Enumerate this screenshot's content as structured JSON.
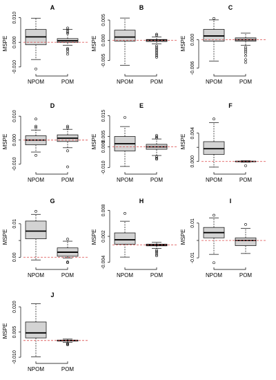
{
  "chart_data": [
    {
      "type": "box",
      "title": "A",
      "ylabel": "MSPE",
      "ylim": [
        -0.012,
        0.011
      ],
      "ticks": [
        -0.01,
        0.0,
        0.01
      ],
      "tick_labels": [
        "-0.010",
        "0.000",
        "0.010"
      ],
      "reference_line": 0,
      "categories": [
        "NPOM",
        "POM"
      ],
      "boxes": [
        {
          "min": -0.007,
          "q1": -0.001,
          "median": 0.0022,
          "q3": 0.0052,
          "max": 0.0098,
          "outliers": [
            -0.0108
          ]
        },
        {
          "min": -0.0012,
          "q1": -0.0001,
          "median": 0.0006,
          "q3": 0.0015,
          "max": 0.0052,
          "outliers": [
            0.0058,
            0.005,
            0.0042,
            0.0036,
            -0.0025,
            -0.003,
            -0.0038,
            -0.0048
          ]
        }
      ]
    },
    {
      "type": "box",
      "title": "B",
      "ylabel": "MSPE",
      "ylim": [
        -0.0078,
        0.0062
      ],
      "ticks": [
        -0.005,
        0.0,
        0.005
      ],
      "tick_labels": [
        "-0.005",
        "0.000",
        "0.005"
      ],
      "reference_line": 0,
      "categories": [
        "NPOM",
        "POM"
      ],
      "boxes": [
        {
          "min": -0.0062,
          "q1": -0.0002,
          "median": 0.0008,
          "q3": 0.0025,
          "max": 0.0055,
          "outliers": []
        },
        {
          "min": -0.0009,
          "q1": -0.0003,
          "median": 0.0,
          "q3": 0.0002,
          "max": 0.0008,
          "outliers": [
            0.0012,
            0.0015,
            -0.0014,
            -0.0018,
            -0.0022,
            -0.0026,
            -0.003,
            -0.0034,
            -0.0038,
            -0.0042
          ]
        }
      ]
    },
    {
      "type": "box",
      "title": "C",
      "ylabel": "MSPE",
      "ylim": [
        -0.0068,
        0.0052
      ],
      "ticks": [
        -0.006,
        0.0
      ],
      "tick_labels": [
        "-0.006",
        "0.000"
      ],
      "reference_line": 0,
      "categories": [
        "NPOM",
        "POM"
      ],
      "boxes": [
        {
          "min": -0.0045,
          "q1": -0.0003,
          "median": 0.0008,
          "q3": 0.0022,
          "max": 0.0042,
          "outliers": [
            0.0045
          ]
        },
        {
          "min": -0.0012,
          "q1": -0.0003,
          "median": 0.0,
          "q3": 0.0004,
          "max": 0.0014,
          "outliers": [
            -0.0016,
            -0.002,
            -0.0024,
            -0.0028,
            -0.0034,
            -0.0042,
            -0.0048
          ]
        }
      ]
    },
    {
      "type": "box",
      "title": "D",
      "ylabel": "MSPE",
      "ylim": [
        -0.0125,
        0.0112
      ],
      "ticks": [
        -0.01,
        0.0,
        0.01
      ],
      "tick_labels": [
        "-0.010",
        "0.000",
        "0.010"
      ],
      "reference_line": 0,
      "categories": [
        "NPOM",
        "POM"
      ],
      "boxes": [
        {
          "min": -0.005,
          "q1": -0.002,
          "median": 0.0,
          "q3": 0.0018,
          "max": 0.0042,
          "outliers": [
            0.0058,
            0.0052,
            -0.0064,
            0.0088
          ]
        },
        {
          "min": -0.0032,
          "q1": -0.0006,
          "median": 0.0008,
          "q3": 0.0022,
          "max": 0.0045,
          "outliers": [
            0.0052,
            0.0058,
            -0.0045,
            -0.0112
          ]
        }
      ]
    },
    {
      "type": "box",
      "title": "E",
      "ylabel": "MSPE",
      "ylim": [
        -0.0112,
        0.0162
      ],
      "ticks": [
        -0.01,
        0.0,
        0.005,
        0.015
      ],
      "tick_labels": [
        "-0.010",
        "0.000",
        "0.005",
        "0.015"
      ],
      "reference_line": 0,
      "categories": [
        "NPOM",
        "POM"
      ],
      "boxes": [
        {
          "min": -0.0095,
          "q1": -0.002,
          "median": 0.0015,
          "q3": 0.005,
          "max": 0.0098,
          "outliers": [
            0.0142
          ]
        },
        {
          "min": -0.0042,
          "q1": -0.0012,
          "median": 0.0,
          "q3": 0.0012,
          "max": 0.0038,
          "outliers": [
            0.0042,
            0.0048,
            0.0055,
            -0.0048,
            -0.0055,
            -0.006
          ]
        }
      ]
    },
    {
      "type": "box",
      "title": "F",
      "ylabel": "MSPE",
      "ylim": [
        -0.0012,
        0.0068
      ],
      "ticks": [
        0.0,
        0.002,
        0.004
      ],
      "tick_labels": [
        "0.000",
        "",
        "0.004"
      ],
      "reference_line": 0,
      "categories": [
        "NPOM",
        "POM"
      ],
      "boxes": [
        {
          "min": -0.0008,
          "q1": 0.001,
          "median": 0.0018,
          "q3": 0.0028,
          "max": 0.0055,
          "outliers": [
            0.006
          ]
        },
        {
          "min": -0.0001,
          "q1": -3e-05,
          "median": 0.0,
          "q3": 3e-05,
          "max": 0.0001,
          "outliers": [
            -0.0006
          ]
        }
      ]
    },
    {
      "type": "box",
      "title": "G",
      "ylabel": "MSPE",
      "ylim": [
        -0.0024,
        0.0145
      ],
      "ticks": [
        0.0,
        0.005,
        0.01
      ],
      "tick_labels": [
        "0.00",
        "",
        "0.01"
      ],
      "reference_line": 0,
      "categories": [
        "NPOM",
        "POM"
      ],
      "boxes": [
        {
          "min": -0.0008,
          "q1": 0.0055,
          "median": 0.0078,
          "q3": 0.0108,
          "max": 0.0128,
          "outliers": [
            0.0137
          ]
        },
        {
          "min": -0.0002,
          "q1": 0.0003,
          "median": 0.0015,
          "q3": 0.0028,
          "max": 0.0048,
          "outliers": [
            0.0054,
            -0.0014,
            -0.0016
          ]
        }
      ]
    },
    {
      "type": "box",
      "title": "H",
      "ylabel": "MSPE",
      "ylim": [
        -0.0047,
        0.0084
      ],
      "ticks": [
        -0.004,
        0.002,
        0.008
      ],
      "tick_labels": [
        "-0.004",
        "0.002",
        "0.008"
      ],
      "reference_line": 0,
      "categories": [
        "NPOM",
        "POM"
      ],
      "boxes": [
        {
          "min": -0.0028,
          "q1": 0.0002,
          "median": 0.0012,
          "q3": 0.0028,
          "max": 0.0055,
          "outliers": [
            0.0073
          ]
        },
        {
          "min": -0.0008,
          "q1": -0.0002,
          "median": 0.0,
          "q3": 0.0002,
          "max": 0.0006,
          "outliers": [
            -0.0012,
            -0.0015,
            -0.0018,
            -0.0022,
            -0.0025
          ]
        }
      ]
    },
    {
      "type": "box",
      "title": "I",
      "ylabel": "MSPE",
      "ylim": [
        -0.0143,
        0.0183
      ],
      "ticks": [
        -0.01,
        0.0,
        0.01
      ],
      "tick_labels": [
        "-0.01",
        "",
        "0.01"
      ],
      "reference_line": 0,
      "categories": [
        "NPOM",
        "POM"
      ],
      "boxes": [
        {
          "min": -0.008,
          "q1": 0.0015,
          "median": 0.0045,
          "q3": 0.0075,
          "max": 0.013,
          "outliers": [
            0.0145,
            -0.0128
          ]
        },
        {
          "min": -0.0075,
          "q1": -0.003,
          "median": 0.0,
          "q3": 0.0015,
          "max": 0.007,
          "outliers": [
            0.0092
          ]
        }
      ]
    },
    {
      "type": "box",
      "title": "J",
      "ylabel": "MSPE",
      "ylim": [
        -0.0112,
        0.0225
      ],
      "ticks": [
        -0.01,
        0.005,
        0.02
      ],
      "tick_labels": [
        "-0.010",
        "0.005",
        "0.020"
      ],
      "reference_line": 0,
      "categories": [
        "NPOM",
        "POM"
      ],
      "boxes": [
        {
          "min": -0.0098,
          "q1": 0.0015,
          "median": 0.0045,
          "q3": 0.011,
          "max": 0.0218,
          "outliers": []
        },
        {
          "min": -0.0012,
          "q1": -0.0004,
          "median": 0.0,
          "q3": 0.0002,
          "max": 0.0008,
          "outliers": [
            -0.0018,
            -0.0022,
            -0.0026
          ]
        }
      ]
    }
  ]
}
